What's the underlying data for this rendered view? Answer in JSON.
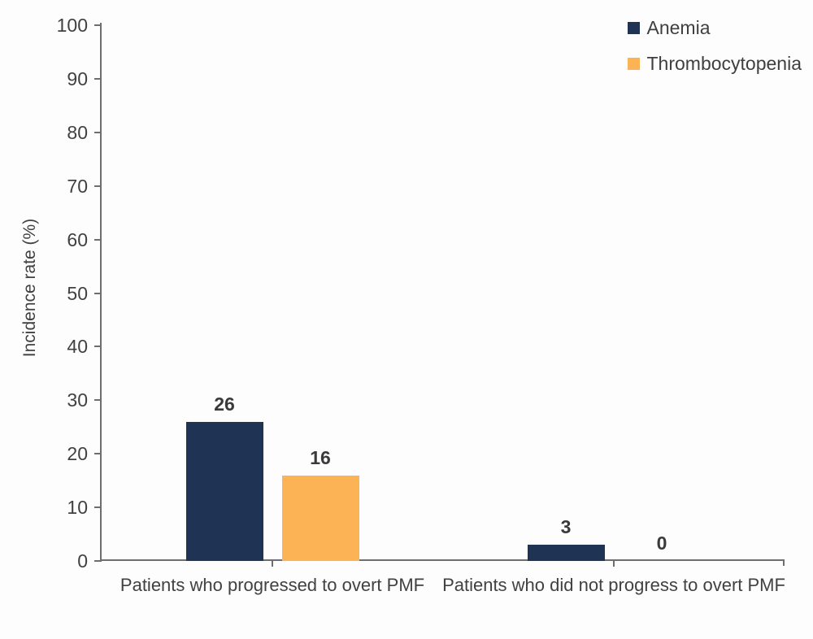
{
  "chart_data": {
    "type": "bar",
    "categories": [
      "Patients who progressed to overt PMF",
      "Patients who did not progress to overt PMF"
    ],
    "series": [
      {
        "name": "Anemia",
        "color": "#1f3354",
        "values": [
          26,
          3
        ]
      },
      {
        "name": "Thrombocytopenia",
        "color": "#fbb355",
        "values": [
          16,
          0
        ]
      }
    ],
    "title": "",
    "xlabel": "",
    "ylabel": "Incidence rate (%)",
    "ylim": [
      0,
      100
    ],
    "yticks": [
      0,
      10,
      20,
      30,
      40,
      50,
      60,
      70,
      80,
      90,
      100
    ],
    "grid": false,
    "legend_position": "top-right",
    "value_labels_shown": true
  },
  "colors": {
    "background": "#fdfdfd",
    "axis": "#6e6e6e",
    "tick_text": "#414141",
    "value_label_text": "#3a3a3a",
    "anemia": "#1f3354",
    "thrombocytopenia": "#fbb355"
  }
}
